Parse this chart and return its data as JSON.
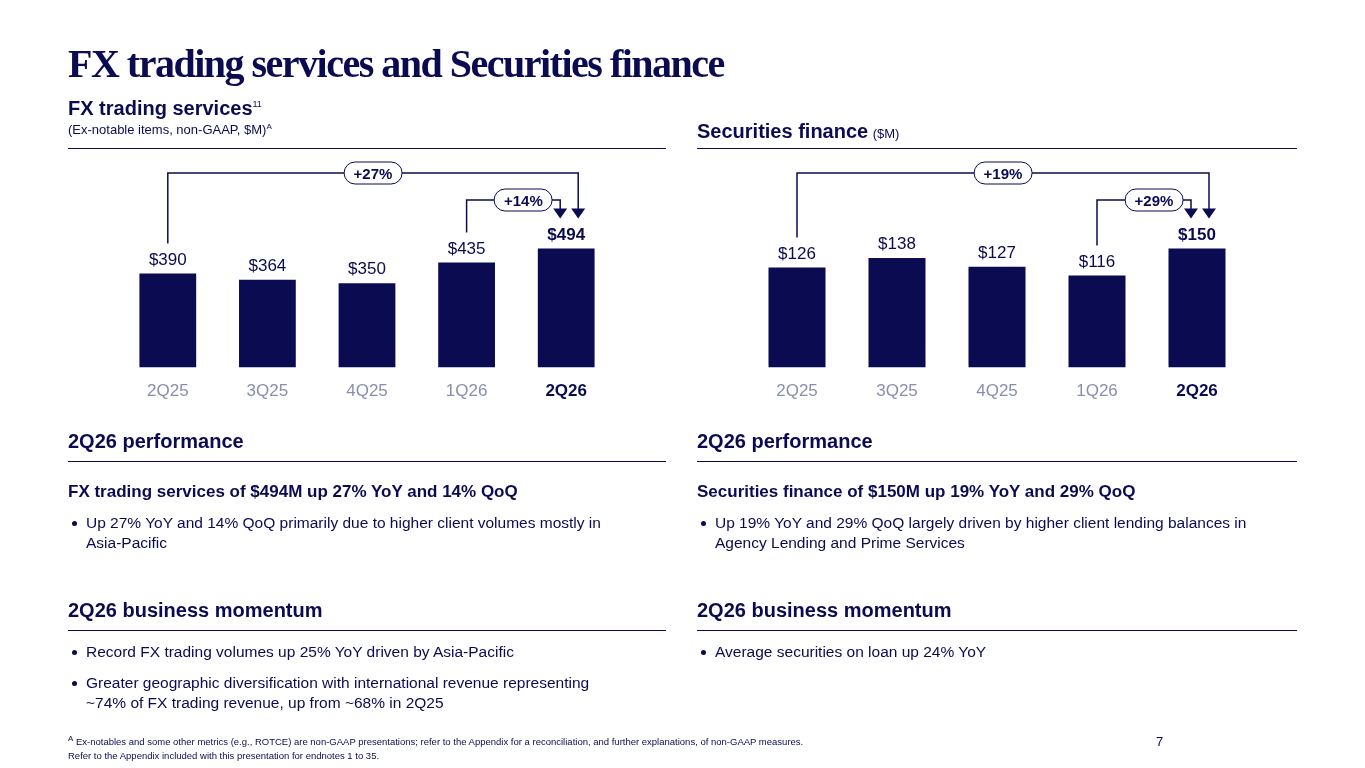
{
  "chart_data": [
    {
      "type": "bar",
      "title": "FX trading services$^{11}$",
      "subtitle": "(Ex-notable items, non-GAAP, $M)$^{A}$",
      "categories": [
        "2Q25",
        "3Q25",
        "4Q25",
        "1Q26",
        "2Q26"
      ],
      "values": [
        390,
        364,
        350,
        435,
        494
      ],
      "value_labels": [
        "$390",
        "$364",
        "$350",
        "$435",
        "$494"
      ],
      "color": "#0b0b52",
      "annotations": [
        "+27%",
        "+14%",
        "2Q26 performance",
        "FX trading services of $494M up 27% YoY and 14% QoQ",
        "Up 27% YoY and 14% QoQ primarily due to higher client volumes mostly in Asia-Pacific",
        "2Q26 business momentum",
        "Record FX trading volumes up 25% YoY driven by Asia-Pacific",
        "Greater geographic diversification with international revenue representing ~74% of FX trading revenue, up from ~68% in 2Q25"
      ]
    },
    {
      "type": "bar",
      "title": "Securities finance",
      "subtitle": "($M)",
      "categories": [
        "2Q25",
        "3Q25",
        "4Q25",
        "1Q26",
        "2Q26"
      ],
      "values": [
        126,
        138,
        127,
        116,
        150
      ],
      "value_labels": [
        "$126",
        "$138",
        "$127",
        "$116",
        "$150"
      ],
      "color": "#0b0b52",
      "annotations": [
        "+19%",
        "+29%",
        "2Q26 performance",
        "Securities finance of $150M up 19% YoY and 29% QoQ",
        "Up 19% YoY and 29% QoQ largely driven by higher client lending balances in Agency Lending and Prime Services",
        "2Q26 business momentum",
        "Average securities on loan up 24% YoY"
      ]
    },
    {
      "type": "other",
      "title": "FX trading services and Securities finance",
      "annotations": [
        "$^{A}$ Ex-notables and some other metrics (e.g., ROTCE) are non-GAAP presentations; refer to the Appendix for a reconciliation, and further explanations, of non-GAAP measures.",
        "Refer to the Appendix included with this presentation for endnotes 1 to 35.",
        "7"
      ]
    }
  ]
}
